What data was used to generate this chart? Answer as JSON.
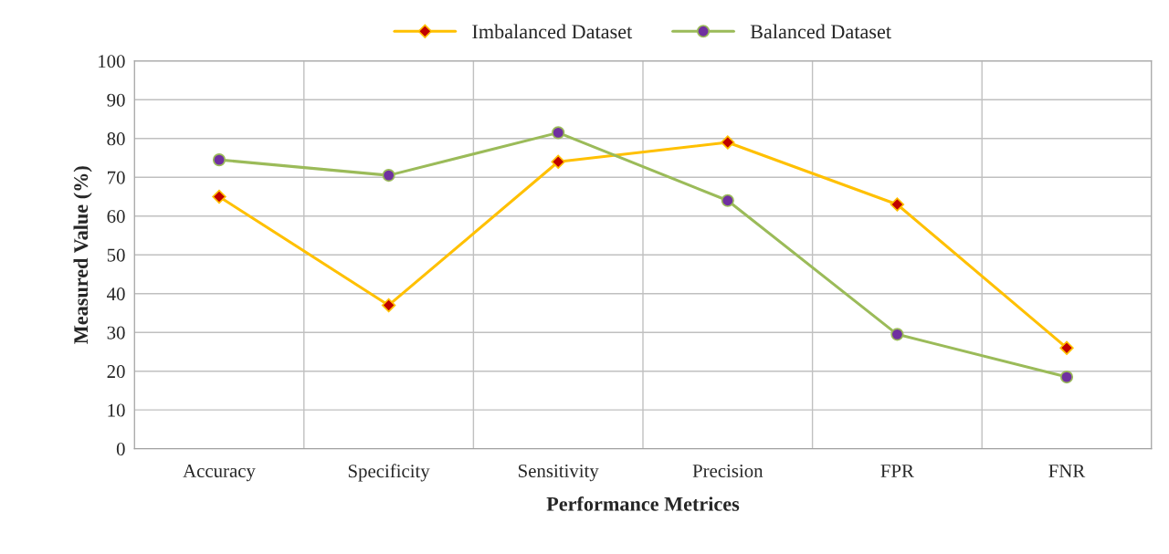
{
  "chart_data": {
    "type": "line",
    "xlabel": "Performance Metrices",
    "ylabel": "Measured Value (%)",
    "categories": [
      "Accuracy",
      "Specificity",
      "Sensitivity",
      "Precision",
      "FPR",
      "FNR"
    ],
    "series": [
      {
        "name": "Imbalanced Dataset",
        "color": "#ffc000",
        "marker": "diamond",
        "values": [
          65,
          37,
          74,
          79,
          63,
          26
        ]
      },
      {
        "name": "Balanced Dataset",
        "color": "#9bbb59",
        "marker": "circle",
        "values": [
          74.5,
          70.5,
          81.5,
          64,
          29.5,
          18.5
        ]
      }
    ],
    "ylim": [
      0,
      100
    ],
    "yticks": [
      0,
      10,
      20,
      30,
      40,
      50,
      60,
      70,
      80,
      90,
      100
    ],
    "grid": true,
    "legend": "top"
  }
}
